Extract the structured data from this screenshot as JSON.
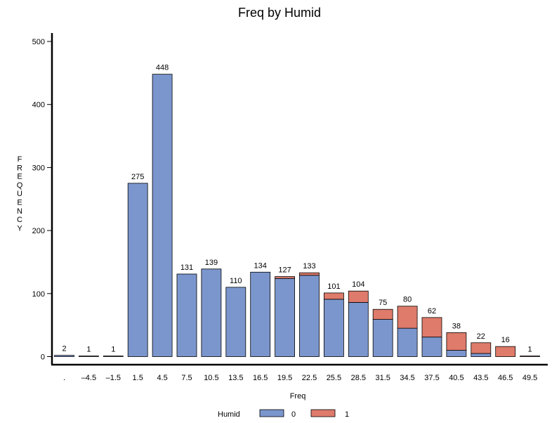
{
  "chart_data": {
    "type": "bar",
    "stacked": true,
    "title": "Freq by Humid",
    "xlabel": "Freq",
    "ylabel": "FREQUENCY",
    "ylim": [
      0,
      500
    ],
    "yticks": [
      "0",
      "100",
      "200",
      "300",
      "400",
      "500"
    ],
    "legend_title": "Humid",
    "legend_position": "bottom",
    "categories": [
      ".",
      "–4.5",
      "–1.5",
      "1.5",
      "4.5",
      "7.5",
      "10.5",
      "13.5",
      "16.5",
      "19.5",
      "22.5",
      "25.5",
      "28.5",
      "31.5",
      "34.5",
      "37.5",
      "40.5",
      "43.5",
      "46.5",
      "49.5"
    ],
    "totals": [
      "2",
      "1",
      "1",
      "275",
      "448",
      "131",
      "139",
      "110",
      "134",
      "127",
      "133",
      "101",
      "104",
      "75",
      "80",
      "62",
      "38",
      "22",
      "16",
      "1"
    ],
    "series": [
      {
        "name": "0",
        "color": "#7b96cd",
        "values": [
          2,
          1,
          1,
          275,
          448,
          131,
          139,
          110,
          134,
          124,
          129,
          91,
          86,
          59,
          45,
          31,
          10,
          5,
          0,
          0
        ]
      },
      {
        "name": "1",
        "color": "#de7b6b",
        "values": [
          0,
          0,
          0,
          0,
          0,
          0,
          0,
          0,
          0,
          3,
          4,
          10,
          18,
          16,
          35,
          31,
          28,
          17,
          16,
          1
        ]
      }
    ]
  }
}
